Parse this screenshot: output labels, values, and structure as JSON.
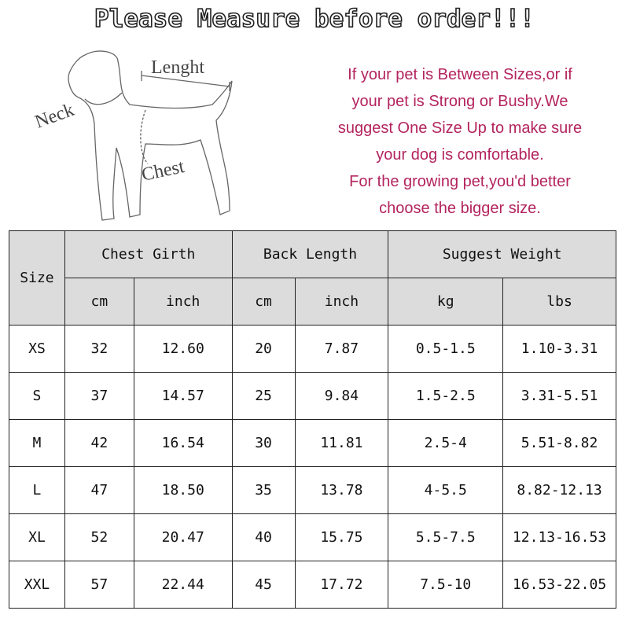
{
  "title": "Please Measure before order!!!",
  "diagram": {
    "labels": {
      "length": "Lenght",
      "neck": "Neck",
      "chest": "Chest"
    }
  },
  "note": {
    "lines": [
      "If your pet is Between Sizes,or if",
      "your pet is Strong or Bushy.We",
      "suggest One Size Up to make sure",
      "your dog is comfortable.",
      "For the growing pet,you'd better",
      "choose the bigger size."
    ],
    "color": "#b3245e"
  },
  "table": {
    "size_header": "Size",
    "groups": [
      "Chest Girth",
      "Back Length",
      "Suggest Weight"
    ],
    "units": [
      "cm",
      "inch",
      "cm",
      "inch",
      "kg",
      "lbs"
    ],
    "header_bg": "#dcdcdc",
    "rows": [
      [
        "XS",
        "32",
        "12.60",
        "20",
        "7.87",
        "0.5-1.5",
        "1.10-3.31"
      ],
      [
        "S",
        "37",
        "14.57",
        "25",
        "9.84",
        "1.5-2.5",
        "3.31-5.51"
      ],
      [
        "M",
        "42",
        "16.54",
        "30",
        "11.81",
        "2.5-4",
        "5.51-8.82"
      ],
      [
        "L",
        "47",
        "18.50",
        "35",
        "13.78",
        "4-5.5",
        "8.82-12.13"
      ],
      [
        "XL",
        "52",
        "20.47",
        "40",
        "15.75",
        "5.5-7.5",
        "12.13-16.53"
      ],
      [
        "XXL",
        "57",
        "22.44",
        "45",
        "17.72",
        "7.5-10",
        "16.53-22.05"
      ]
    ]
  }
}
